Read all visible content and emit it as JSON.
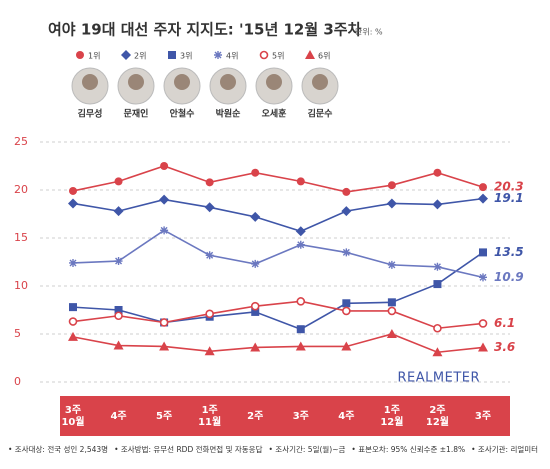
{
  "chart_data": {
    "type": "line",
    "title": "여야 19대 대선 주자 지지도: '15년 12월 3주차",
    "unit_note": "단위: %",
    "categories": [
      "3주\n10월",
      "4주",
      "5주",
      "1주\n11월",
      "2주",
      "3주",
      "4주",
      "1주\n12월",
      "2주\n12월",
      "3주"
    ],
    "series": [
      {
        "name": "1위",
        "candidate": "김무성",
        "color": "#d9434a",
        "marker": "circle",
        "values": [
          19.9,
          20.9,
          22.5,
          20.8,
          21.8,
          20.9,
          19.8,
          20.5,
          21.8,
          20.3
        ]
      },
      {
        "name": "2위",
        "candidate": "문재인",
        "color": "#3f56a8",
        "marker": "diamond",
        "values": [
          18.6,
          17.8,
          19.0,
          18.2,
          17.2,
          15.7,
          17.8,
          18.6,
          18.5,
          19.1
        ]
      },
      {
        "name": "3위",
        "candidate": "안철수",
        "color": "#3f56a8",
        "marker": "square",
        "values": [
          7.8,
          7.5,
          6.2,
          6.8,
          7.3,
          5.5,
          8.2,
          8.3,
          10.2,
          13.5
        ]
      },
      {
        "name": "4위",
        "candidate": "박원순",
        "color": "#6b78c0",
        "marker": "asterisk",
        "values": [
          12.4,
          12.6,
          15.8,
          13.2,
          12.3,
          14.3,
          13.5,
          12.2,
          12.0,
          10.9
        ]
      },
      {
        "name": "5위",
        "candidate": "오세훈",
        "color": "#d9434a",
        "marker": "open-circle",
        "values": [
          6.3,
          6.9,
          6.2,
          7.1,
          7.9,
          8.4,
          7.4,
          7.4,
          5.6,
          6.1
        ]
      },
      {
        "name": "6위",
        "candidate": "김문수",
        "color": "#d9434a",
        "marker": "triangle",
        "values": [
          4.7,
          3.8,
          3.7,
          3.2,
          3.6,
          3.7,
          3.7,
          5.0,
          3.1,
          3.6
        ]
      }
    ],
    "ylim": [
      0,
      25
    ],
    "yticks": [
      0,
      5,
      10,
      15,
      20,
      25
    ],
    "grid": true,
    "watermark": "REALMETER",
    "notes": [
      "• 조사대상: 전국 성인 2,543명",
      "• 조사방법: 유무선 RDD 전화면접 및 자동응답",
      "• 조사기간: 5일(월)~금",
      "• 표본오차: 95% 신뢰수준 ±1.8%",
      "• 조사기관: 리얼미터"
    ]
  }
}
